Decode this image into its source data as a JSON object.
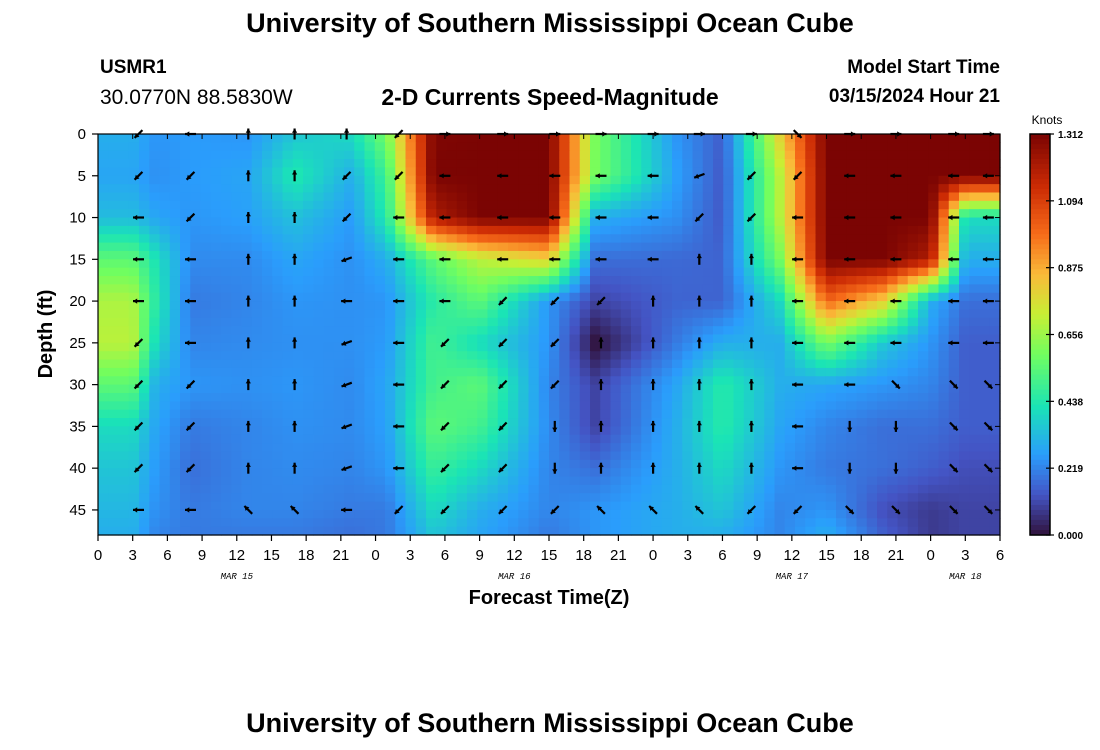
{
  "header": {
    "title": "University of Southern Mississippi Ocean Cube",
    "station_id": "USMR1",
    "coordinates": "30.0770N  88.5830W",
    "subtitle": "2-D Currents Speed-Magnitude",
    "model_start_label": "Model Start Time",
    "model_start_value": "03/15/2024 Hour 21"
  },
  "footer": {
    "title": "University of Southern Mississippi Ocean Cube"
  },
  "chart_data": {
    "type": "heatmap",
    "xlabel": "Forecast Time(Z)",
    "ylabel": "Depth (ft)",
    "x_ticks": [
      "0",
      "3",
      "6",
      "9",
      "12",
      "15",
      "18",
      "21",
      "0",
      "3",
      "6",
      "9",
      "12",
      "15",
      "18",
      "21",
      "0",
      "3",
      "6",
      "9",
      "12",
      "15",
      "18",
      "21",
      "0",
      "3",
      "6"
    ],
    "date_labels": [
      {
        "label": "MAR 15",
        "tick_index": 4
      },
      {
        "label": "MAR 16",
        "tick_index": 12
      },
      {
        "label": "MAR 17",
        "tick_index": 20
      },
      {
        "label": "MAR 18",
        "tick_index": 25
      }
    ],
    "y_ticks": [
      0,
      5,
      10,
      15,
      20,
      25,
      30,
      35,
      40,
      45
    ],
    "ylim": [
      0,
      48
    ],
    "x_hours_range": [
      0,
      78
    ],
    "colorbar": {
      "unit": "Knots",
      "ticks": [
        "0.000",
        "0.219",
        "0.438",
        "0.656",
        "0.875",
        "1.094",
        "1.312"
      ],
      "min": 0,
      "max": 1.312,
      "colormap": "turbo"
    },
    "speed_field": {
      "hours": [
        3,
        5,
        8,
        13,
        17,
        22,
        25,
        29,
        33,
        39,
        43,
        50,
        54,
        59,
        63,
        68,
        72,
        75
      ],
      "depths": [
        0,
        5,
        10,
        15,
        20,
        25,
        30,
        35,
        40,
        45,
        48
      ],
      "values_knots": [
        [
          0.3,
          0.25,
          0.26,
          0.25,
          0.35,
          0.4,
          0.6,
          1.3,
          1.31,
          1.31,
          0.6,
          0.25,
          0.15,
          0.8,
          1.31,
          1.31,
          1.31,
          1.31
        ],
        [
          0.28,
          0.24,
          0.26,
          0.28,
          0.44,
          0.3,
          0.5,
          1.31,
          1.31,
          1.31,
          0.6,
          0.27,
          0.14,
          0.7,
          1.31,
          1.31,
          1.31,
          1.31
        ],
        [
          0.33,
          0.28,
          0.25,
          0.27,
          0.34,
          0.26,
          0.45,
          1.2,
          1.31,
          1.31,
          0.3,
          0.24,
          0.14,
          0.7,
          1.31,
          1.31,
          1.31,
          0.4
        ],
        [
          0.55,
          0.42,
          0.23,
          0.23,
          0.28,
          0.24,
          0.3,
          0.55,
          0.7,
          0.8,
          0.18,
          0.17,
          0.16,
          0.6,
          1.31,
          1.31,
          1.2,
          0.3
        ],
        [
          0.68,
          0.45,
          0.2,
          0.22,
          0.25,
          0.24,
          0.25,
          0.45,
          0.55,
          0.25,
          0.1,
          0.16,
          0.16,
          0.4,
          1.0,
          0.8,
          0.3,
          0.18
        ],
        [
          0.7,
          0.4,
          0.22,
          0.23,
          0.24,
          0.24,
          0.26,
          0.5,
          0.4,
          0.25,
          0.0,
          0.2,
          0.3,
          0.3,
          0.6,
          0.35,
          0.25,
          0.15
        ],
        [
          0.55,
          0.3,
          0.25,
          0.24,
          0.25,
          0.23,
          0.28,
          0.5,
          0.55,
          0.22,
          0.1,
          0.28,
          0.45,
          0.3,
          0.28,
          0.25,
          0.22,
          0.15
        ],
        [
          0.4,
          0.28,
          0.2,
          0.22,
          0.24,
          0.23,
          0.27,
          0.55,
          0.5,
          0.23,
          0.1,
          0.3,
          0.45,
          0.28,
          0.22,
          0.18,
          0.18,
          0.15
        ],
        [
          0.35,
          0.26,
          0.18,
          0.22,
          0.23,
          0.22,
          0.25,
          0.48,
          0.4,
          0.22,
          0.18,
          0.3,
          0.4,
          0.25,
          0.2,
          0.18,
          0.15,
          0.12
        ],
        [
          0.32,
          0.24,
          0.2,
          0.22,
          0.22,
          0.2,
          0.2,
          0.4,
          0.3,
          0.22,
          0.25,
          0.3,
          0.35,
          0.22,
          0.25,
          0.12,
          0.08,
          0.1
        ],
        [
          0.3,
          0.22,
          0.2,
          0.2,
          0.2,
          0.18,
          0.2,
          0.35,
          0.28,
          0.2,
          0.25,
          0.3,
          0.3,
          0.22,
          0.3,
          0.15,
          0.08,
          0.1
        ]
      ]
    },
    "vectors": {
      "hours": [
        3.5,
        8,
        13,
        17,
        21.5,
        26,
        30,
        35,
        39.5,
        43.5,
        48,
        52,
        56.5,
        60.5,
        65,
        69,
        74,
        77
      ],
      "depths": [
        0,
        5,
        10,
        15,
        20,
        25,
        30,
        35,
        40,
        45
      ],
      "angles_deg": [
        [
          225,
          180,
          90,
          90,
          90,
          225,
          0,
          0,
          0,
          0,
          0,
          0,
          0,
          315,
          0,
          0,
          0,
          0
        ],
        [
          225,
          225,
          90,
          90,
          225,
          225,
          180,
          180,
          180,
          180,
          180,
          200,
          225,
          225,
          180,
          180,
          180,
          180
        ],
        [
          180,
          225,
          90,
          90,
          225,
          180,
          180,
          180,
          180,
          180,
          180,
          225,
          225,
          180,
          180,
          180,
          180,
          180
        ],
        [
          180,
          180,
          90,
          90,
          200,
          180,
          180,
          180,
          180,
          180,
          180,
          90,
          90,
          180,
          180,
          180,
          180,
          180
        ],
        [
          180,
          180,
          90,
          90,
          180,
          180,
          180,
          225,
          225,
          225,
          90,
          90,
          90,
          180,
          180,
          180,
          180,
          180
        ],
        [
          225,
          180,
          90,
          90,
          200,
          180,
          225,
          225,
          225,
          90,
          90,
          90,
          90,
          180,
          180,
          180,
          180,
          180
        ],
        [
          225,
          225,
          90,
          90,
          200,
          180,
          225,
          225,
          225,
          90,
          90,
          90,
          90,
          180,
          180,
          315,
          315,
          315
        ],
        [
          225,
          225,
          90,
          90,
          200,
          180,
          225,
          225,
          270,
          90,
          90,
          90,
          90,
          180,
          270,
          270,
          315,
          315
        ],
        [
          225,
          225,
          90,
          90,
          200,
          180,
          225,
          225,
          270,
          90,
          90,
          90,
          90,
          180,
          270,
          270,
          315,
          315
        ],
        [
          180,
          180,
          135,
          135,
          180,
          225,
          225,
          225,
          225,
          135,
          135,
          135,
          225,
          225,
          315,
          315,
          315,
          315
        ]
      ]
    }
  }
}
